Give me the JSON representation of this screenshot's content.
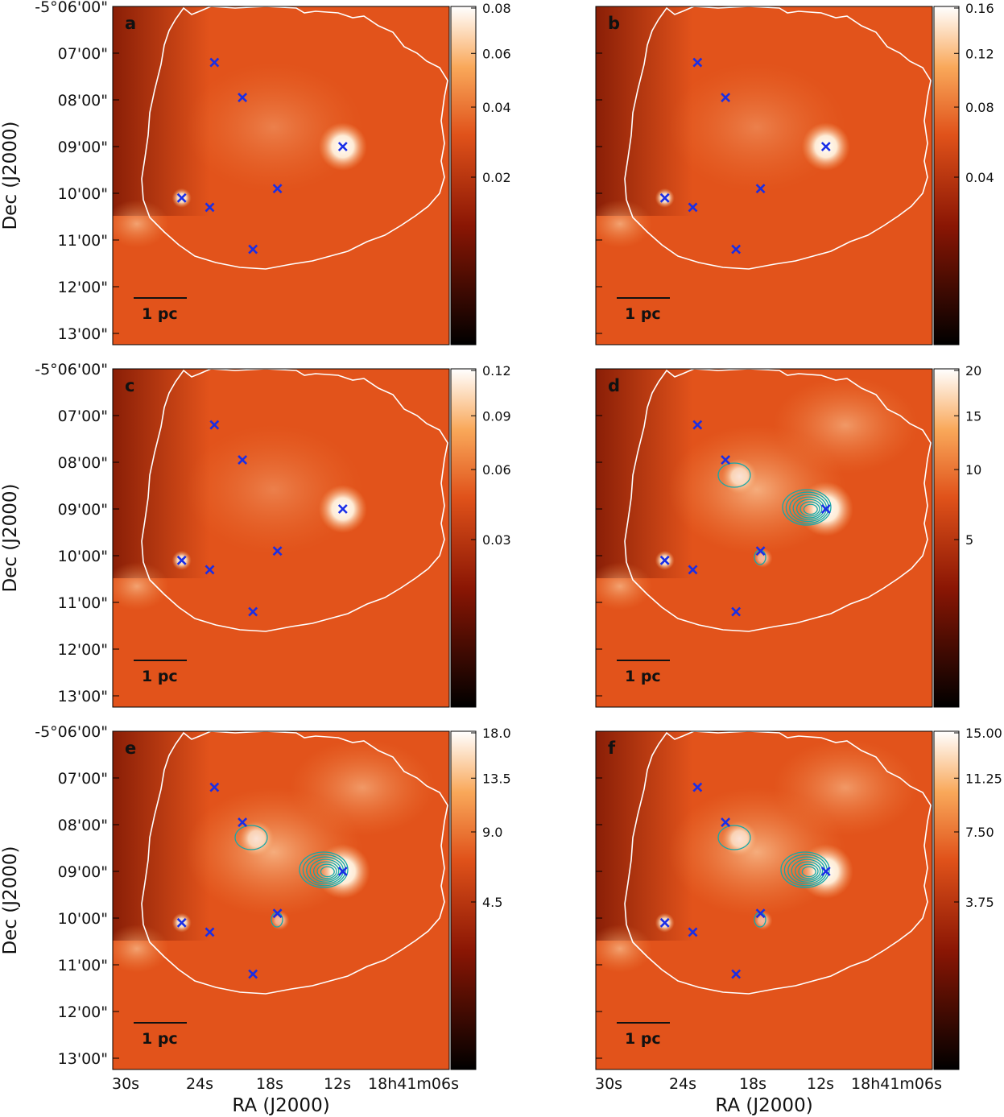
{
  "chart_data": {
    "type": "heatmap",
    "shared_axes": {
      "xlabel": "RA (J2000)",
      "ylabel": "Dec (J2000)",
      "ra_ticks": [
        "30s",
        "24s",
        "18s",
        "12s",
        "18h41m06s"
      ],
      "dec_ticks": [
        "-5°06'00\"",
        "07'00\"",
        "08'00\"",
        "09'00\"",
        "10'00\"",
        "11'00\"",
        "12'00\"",
        "13'00\""
      ],
      "dec_range_arcmin_offset": [
        0,
        7
      ],
      "scale_bar_label": "1 pc"
    },
    "markers": [
      {
        "label": "source",
        "ra_s": 22.6,
        "dec_arcmin": 7.2
      },
      {
        "label": "source",
        "ra_s": 20.2,
        "dec_arcmin": 7.95
      },
      {
        "label": "source",
        "ra_s": 11.6,
        "dec_arcmin": 9.0
      },
      {
        "label": "source",
        "ra_s": 25.4,
        "dec_arcmin": 10.1
      },
      {
        "label": "source",
        "ra_s": 23.0,
        "dec_arcmin": 10.3
      },
      {
        "label": "source",
        "ra_s": 17.2,
        "dec_arcmin": 9.9
      },
      {
        "label": "source",
        "ra_s": 19.3,
        "dec_arcmin": 11.2
      }
    ],
    "panels": [
      {
        "id": "a",
        "colorbar_ticks": [
          "0.08",
          "0.06",
          "0.04",
          "0.02"
        ],
        "colorbar_values": [
          0.08,
          0.06,
          0.04,
          0.02
        ],
        "colorbar_max": 0.08,
        "contours": false
      },
      {
        "id": "b",
        "colorbar_ticks": [
          "0.16",
          "0.12",
          "0.08",
          "0.04"
        ],
        "colorbar_values": [
          0.16,
          0.12,
          0.08,
          0.04
        ],
        "colorbar_max": 0.16,
        "contours": false
      },
      {
        "id": "c",
        "colorbar_ticks": [
          "0.12",
          "0.09",
          "0.06",
          "0.03"
        ],
        "colorbar_values": [
          0.12,
          0.09,
          0.06,
          0.03
        ],
        "colorbar_max": 0.12,
        "contours": false
      },
      {
        "id": "d",
        "colorbar_ticks": [
          "20",
          "15",
          "10",
          "5"
        ],
        "colorbar_values": [
          20,
          15,
          10,
          5
        ],
        "colorbar_max": 20,
        "contours": true
      },
      {
        "id": "e",
        "colorbar_ticks": [
          "18.0",
          "13.5",
          "9.0",
          "4.5"
        ],
        "colorbar_values": [
          18.0,
          13.5,
          9.0,
          4.5
        ],
        "colorbar_max": 18.0,
        "contours": true
      },
      {
        "id": "f",
        "colorbar_ticks": [
          "15.00",
          "11.25",
          "7.50",
          "3.75"
        ],
        "colorbar_values": [
          15.0,
          11.25,
          7.5,
          3.75
        ],
        "colorbar_max": 15.0,
        "contours": true
      }
    ]
  },
  "colors": {
    "map_base": "#e2531b",
    "map_hot": "#fff6e8",
    "map_dark": "#8c1a05",
    "marker": "#1a2ee6",
    "contour": "#16a8a8",
    "boundary": "#ffffff"
  }
}
